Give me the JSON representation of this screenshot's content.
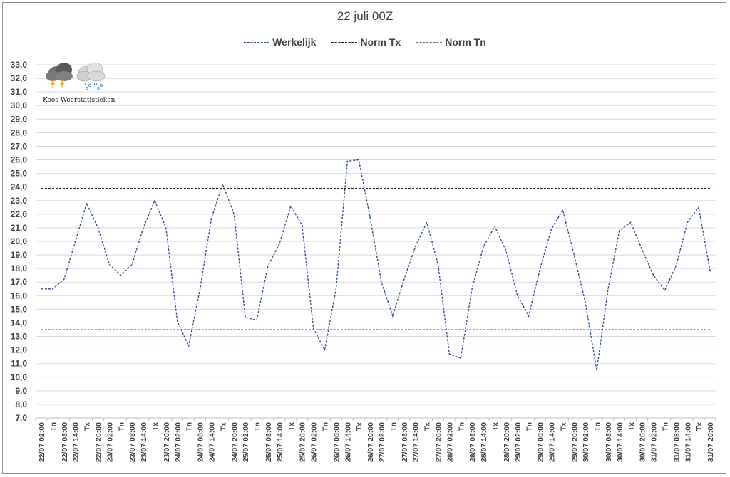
{
  "chart_data": {
    "type": "line",
    "title": "22 juli 00Z",
    "xlabel": "",
    "ylabel": "",
    "ylim": [
      7.0,
      33.0
    ],
    "ystep": 1.0,
    "grid": true,
    "legend_position": "top",
    "categories": [
      "22/07 02:00",
      "Tn",
      "22/07 08:00",
      "22/07 14:00",
      "Tx",
      "22/07 20:00",
      "23/07 02:00",
      "Tn",
      "23/07 08:00",
      "23/07 14:00",
      "Tx",
      "23/07 20:00",
      "24/07 02:00",
      "Tn",
      "24/07 08:00",
      "24/07 14:00",
      "Tx",
      "24/07 20:00",
      "25/07 02:00",
      "Tn",
      "25/07 08:00",
      "25/07 14:00",
      "Tx",
      "25/07 20:00",
      "26/07 02:00",
      "Tn",
      "26/07 08:00",
      "26/07 14:00",
      "Tx",
      "26/07 20:00",
      "27/07 02:00",
      "Tn",
      "27/07 08:00",
      "27/07 14:00",
      "Tx",
      "27/07 20:00",
      "28/07 02:00",
      "Tn",
      "28/07 08:00",
      "28/07 14:00",
      "Tx",
      "28/07 20:00",
      "29/07 02:00",
      "Tn",
      "29/07 08:00",
      "29/07 14:00",
      "Tx",
      "29/07 20:00",
      "30/07 02:00",
      "Tn",
      "30/07 08:00",
      "30/07 14:00",
      "Tx",
      "30/07 20:00",
      "31/07 02:00",
      "Tn",
      "31/07 08:00",
      "31/07 14:00",
      "Tx",
      "31/07 20:00"
    ],
    "series": [
      {
        "name": "Werkelijk",
        "color": "#2f4d8a",
        "values": [
          16.5,
          16.5,
          17.2,
          20.0,
          22.8,
          21.0,
          18.3,
          17.5,
          18.3,
          21.0,
          23.0,
          21.0,
          14.1,
          12.3,
          16.5,
          21.7,
          24.2,
          22.0,
          14.4,
          14.2,
          18.2,
          19.8,
          22.6,
          21.2,
          13.6,
          12.0,
          16.5,
          25.9,
          26.0,
          21.8,
          17.0,
          14.5,
          17.2,
          19.6,
          21.4,
          18.3,
          11.7,
          11.4,
          16.5,
          19.6,
          21.1,
          19.3,
          16.0,
          14.5,
          18.0,
          20.9,
          22.3,
          19.0,
          15.5,
          10.5,
          16.5,
          20.8,
          21.4,
          19.4,
          17.5,
          16.4,
          18.2,
          21.4,
          22.5,
          17.8
        ]
      },
      {
        "name": "Norm Tx",
        "color": "#1a1a1a",
        "constant": 23.9
      },
      {
        "name": "Norm Tn",
        "color": "#6b6b6b",
        "constant": 13.5
      }
    ]
  },
  "logo": {
    "text": "Koos Weerstatistieken",
    "icons": [
      "thunderstorm-cloud-icon",
      "snow-cloud-icon"
    ]
  }
}
